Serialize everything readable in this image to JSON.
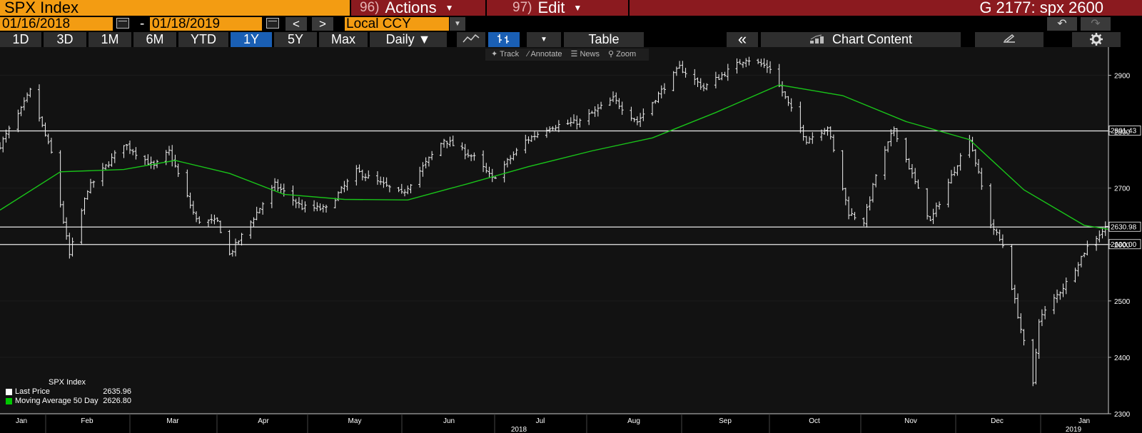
{
  "header": {
    "ticker": "SPX Index",
    "actions_num": "96)",
    "actions_label": "Actions",
    "edit_num": "97)",
    "edit_label": "Edit",
    "graph_title": "G 2177: spx 2600"
  },
  "toolbar": {
    "start_date": "01/16/2018",
    "end_date": "01/18/2019",
    "prev": "<",
    "next": ">",
    "currency": "Local CCY",
    "undo": "↶",
    "redo": "↷"
  },
  "periods": {
    "buttons": [
      "1D",
      "3D",
      "1M",
      "6M",
      "YTD",
      "1Y",
      "5Y",
      "Max"
    ],
    "active": "1Y",
    "frequency": "Daily ▼",
    "table": "Table",
    "collapse": "«",
    "chart_content": "Chart Content"
  },
  "tools": {
    "track": "Track",
    "annotate": "Annotate",
    "news": "News",
    "zoom": "Zoom"
  },
  "legend": {
    "title": "SPX Index",
    "items": [
      {
        "name": "Last Price",
        "value": "2635.96",
        "color": "#ffffff"
      },
      {
        "name": "Moving Average 50 Day",
        "value": "2626.80",
        "color": "#00c800"
      }
    ]
  },
  "colors": {
    "orange": "#f39c12",
    "red": "#8b1a1f",
    "blue": "#1a5fb4",
    "ma": "#19c319"
  },
  "chart_data": {
    "type": "line",
    "ylim": [
      2300,
      2950
    ],
    "y_ticks": [
      2300,
      2400,
      2500,
      2600,
      2700,
      2800,
      2900
    ],
    "x_month_labels": [
      "Jan",
      "Feb",
      "Mar",
      "Apr",
      "May",
      "Jun",
      "Jul",
      "Aug",
      "Sep",
      "Oct",
      "Nov",
      "Dec",
      "Jan"
    ],
    "year_labels": [
      "2018",
      "2019"
    ],
    "horizontal_lines": [
      {
        "value": 2801.43,
        "label": "2801.43"
      },
      {
        "value": 2630.98,
        "label": "2630.98"
      },
      {
        "value": 2600.0,
        "label": "2600.00"
      }
    ],
    "series": [
      {
        "name": "Last Price",
        "x": [
          "2018-01-16",
          "2018-01-23",
          "2018-01-26",
          "2018-02-02",
          "2018-02-08",
          "2018-02-14",
          "2018-02-26",
          "2018-03-08",
          "2018-03-13",
          "2018-03-22",
          "2018-03-29",
          "2018-04-02",
          "2018-04-17",
          "2018-04-26",
          "2018-05-04",
          "2018-05-14",
          "2018-05-29",
          "2018-06-12",
          "2018-06-22",
          "2018-06-28",
          "2018-07-09",
          "2018-07-17",
          "2018-07-27",
          "2018-08-07",
          "2018-08-15",
          "2018-08-29",
          "2018-09-06",
          "2018-09-20",
          "2018-09-28",
          "2018-10-10",
          "2018-10-17",
          "2018-10-24",
          "2018-10-29",
          "2018-11-02",
          "2018-11-08",
          "2018-11-20",
          "2018-12-03",
          "2018-12-10",
          "2018-12-14",
          "2018-12-24",
          "2018-12-26",
          "2019-01-04",
          "2019-01-11",
          "2019-01-18"
        ],
        "values": [
          2776,
          2839,
          2872,
          2762,
          2581,
          2698,
          2779,
          2738,
          2765,
          2643,
          2640,
          2582,
          2706,
          2666,
          2663,
          2730,
          2689,
          2786,
          2754,
          2716,
          2784,
          2809,
          2818,
          2858,
          2818,
          2914,
          2878,
          2930,
          2913,
          2785,
          2809,
          2656,
          2641,
          2723,
          2806,
          2641,
          2790,
          2637,
          2599,
          2351,
          2467,
          2532,
          2596,
          2636
        ]
      },
      {
        "name": "Moving Average 50 Day",
        "x": [
          "2018-01-16",
          "2018-02-05",
          "2018-02-26",
          "2018-03-15",
          "2018-04-02",
          "2018-04-20",
          "2018-05-10",
          "2018-05-31",
          "2018-06-20",
          "2018-07-10",
          "2018-07-31",
          "2018-08-20",
          "2018-09-10",
          "2018-10-01",
          "2018-10-22",
          "2018-11-12",
          "2018-12-03",
          "2018-12-21",
          "2019-01-10",
          "2019-01-18"
        ],
        "values": [
          2661,
          2729,
          2733,
          2749,
          2726,
          2689,
          2680,
          2679,
          2708,
          2738,
          2766,
          2789,
          2834,
          2883,
          2864,
          2818,
          2786,
          2697,
          2634,
          2627
        ]
      }
    ]
  }
}
